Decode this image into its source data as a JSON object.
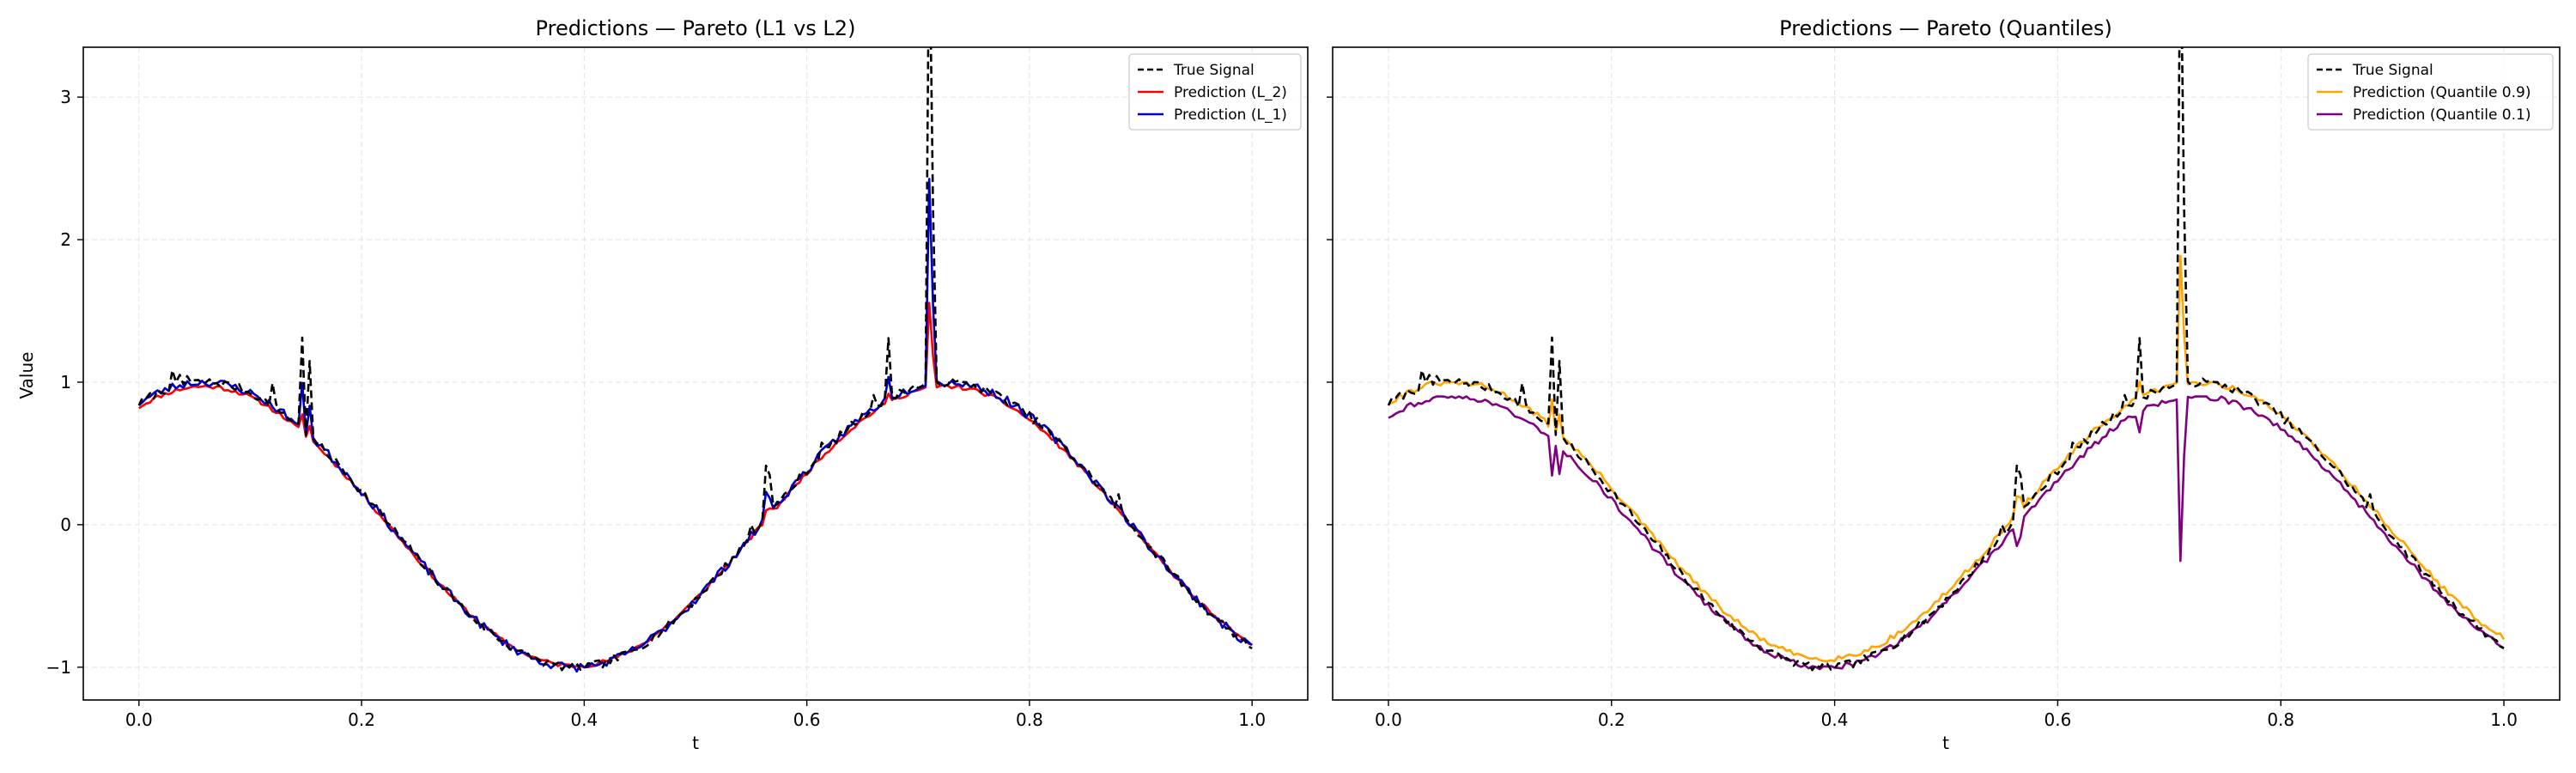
{
  "chart_data": [
    {
      "type": "line",
      "title": "Predictions — Pareto (L1 vs L2)",
      "xlabel": "t",
      "ylabel": "Value",
      "xlim": [
        -0.05,
        1.05
      ],
      "ylim": [
        -1.23,
        3.35
      ],
      "xticks": [
        0.0,
        0.2,
        0.4,
        0.6,
        0.8,
        1.0
      ],
      "xtick_labels": [
        "0.0",
        "0.2",
        "0.4",
        "0.6",
        "0.8",
        "1.0"
      ],
      "yticks": [
        -1,
        0,
        1,
        2,
        3
      ],
      "ytick_labels": [
        "−1",
        "0",
        "1",
        "2",
        "3"
      ],
      "grid": true,
      "legend_position": "top-right",
      "series": [
        {
          "name": "True Signal",
          "color": "#000000",
          "style": "dashed",
          "kind": "true_signal"
        },
        {
          "name": "Prediction (L_2)",
          "color": "#ff0000",
          "style": "solid",
          "kind": "l2"
        },
        {
          "name": "Prediction (L_1)",
          "color": "#0000cc",
          "style": "solid",
          "kind": "l1"
        }
      ]
    },
    {
      "type": "line",
      "title": "Predictions — Pareto (Quantiles)",
      "xlabel": "t",
      "ylabel": "",
      "xlim": [
        -0.05,
        1.05
      ],
      "ylim": [
        -1.23,
        3.35
      ],
      "xticks": [
        0.0,
        0.2,
        0.4,
        0.6,
        0.8,
        1.0
      ],
      "xtick_labels": [
        "0.0",
        "0.2",
        "0.4",
        "0.6",
        "0.8",
        "1.0"
      ],
      "yticks": [
        -1,
        0,
        1,
        2,
        3
      ],
      "ytick_labels": [],
      "grid": true,
      "legend_position": "top-right",
      "series": [
        {
          "name": "True Signal",
          "color": "#000000",
          "style": "dashed",
          "kind": "true_signal"
        },
        {
          "name": "Prediction (Quantile 0.9)",
          "color": "#ffa500",
          "style": "solid",
          "kind": "q90"
        },
        {
          "name": "Prediction (Quantile 0.1)",
          "color": "#800080",
          "style": "solid",
          "kind": "q10"
        }
      ]
    }
  ]
}
